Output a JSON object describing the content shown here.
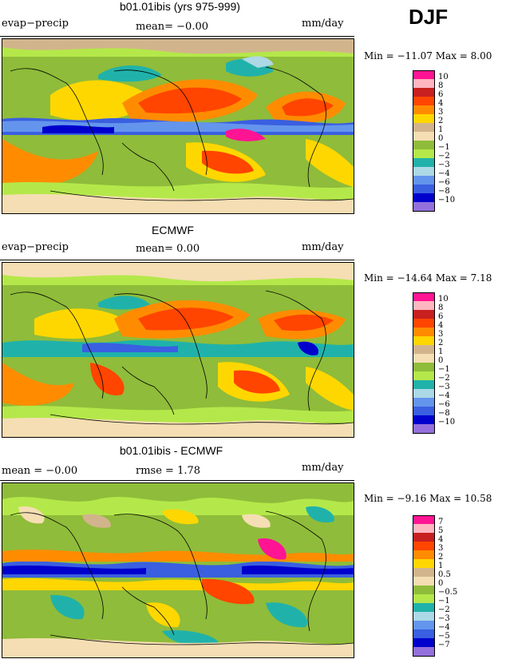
{
  "season": "DJF",
  "panels": [
    {
      "title": "b01.01ibis (yrs 975-999)",
      "left_label": "evap−precip",
      "center_label": "mean=   −0.00",
      "right_label": "mm/day",
      "minmax": "Min = −11.07  Max =    8.00",
      "legend": [
        "10",
        "8",
        "6",
        "4",
        "3",
        "2",
        "1",
        "0",
        "−1",
        "−2",
        "−3",
        "−4",
        "−6",
        "−8",
        "−10"
      ]
    },
    {
      "title": "ECMWF",
      "left_label": "evap−precip",
      "center_label": "mean=    0.00",
      "right_label": "mm/day",
      "minmax": "Min = −14.64  Max =    7.18",
      "legend": [
        "10",
        "8",
        "6",
        "4",
        "3",
        "2",
        "1",
        "0",
        "−1",
        "−2",
        "−3",
        "−4",
        "−6",
        "−8",
        "−10"
      ]
    },
    {
      "title": "b01.01ibis - ECMWF",
      "left_label": "mean =   −0.00",
      "center_label": "rmse =    1.78",
      "right_label": "mm/day",
      "minmax": "Min =  −9.16  Max =   10.58",
      "legend": [
        "7",
        "5",
        "4",
        "3",
        "2",
        "1",
        "0.5",
        "0",
        "−0.5",
        "−1",
        "−2",
        "−3",
        "−4",
        "−5",
        "−7"
      ]
    }
  ],
  "legend_colors": [
    "#ff1493",
    "#ffb6c1",
    "#c82020",
    "#ff4500",
    "#ff8c00",
    "#ffd700",
    "#d2b48c",
    "#f5deb3",
    "#8fbc3a",
    "#b4e84a",
    "#20b2aa",
    "#add8e6",
    "#6495ed",
    "#3a5fe0",
    "#0000cd",
    "#9370db"
  ]
}
